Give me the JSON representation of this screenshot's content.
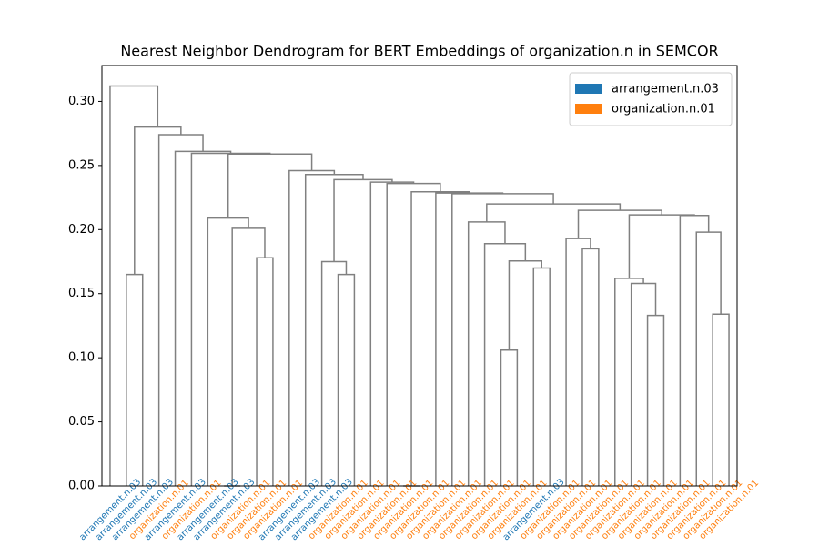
{
  "chart_data": {
    "type": "dendrogram",
    "title": "Nearest Neighbor Dendrogram for BERT Embeddings of organization.n in SEMCOR",
    "series": [
      {
        "name": "arrangement.n.03",
        "color": "#1f77b4"
      },
      {
        "name": "organization.n.01",
        "color": "#ff7f0e"
      }
    ],
    "leaves": [
      "arrangement.n.03",
      "arrangement.n.03",
      "arrangement.n.03",
      "organization.n.01",
      "arrangement.n.03",
      "organization.n.01",
      "arrangement.n.03",
      "arrangement.n.03",
      "organization.n.01",
      "organization.n.01",
      "organization.n.01",
      "arrangement.n.03",
      "arrangement.n.03",
      "arrangement.n.03",
      "organization.n.01",
      "organization.n.01",
      "organization.n.01",
      "organization.n.01",
      "organization.n.01",
      "organization.n.01",
      "organization.n.01",
      "organization.n.01",
      "organization.n.01",
      "organization.n.01",
      "organization.n.01",
      "organization.n.01",
      "arrangement.n.03",
      "organization.n.01",
      "organization.n.01",
      "organization.n.01",
      "organization.n.01",
      "organization.n.01",
      "organization.n.01",
      "organization.n.01",
      "organization.n.01",
      "organization.n.01",
      "organization.n.01",
      "organization.n.01",
      "organization.n.01"
    ],
    "linkage": [
      [
        7,
        8,
        0.0
      ],
      [
        18,
        19,
        0.0
      ],
      [
        24,
        25,
        0.106
      ],
      [
        33,
        34,
        0.133
      ],
      [
        37,
        38,
        0.134
      ],
      [
        1,
        2,
        0.165
      ],
      [
        14,
        15,
        0.165
      ],
      [
        26,
        27,
        0.17
      ],
      [
        13,
        45,
        0.175
      ],
      [
        9,
        10,
        0.178
      ],
      [
        32,
        42,
        0.158
      ],
      [
        31,
        49,
        0.162
      ],
      [
        41,
        46,
        0.1755
      ],
      [
        29,
        30,
        0.185
      ],
      [
        23,
        51,
        0.189
      ],
      [
        28,
        52,
        0.193
      ],
      [
        36,
        43,
        0.198
      ],
      [
        39,
        48,
        0.201
      ],
      [
        22,
        53,
        0.206
      ],
      [
        6,
        56,
        0.209
      ],
      [
        35,
        55,
        0.211
      ],
      [
        50,
        59,
        0.2115
      ],
      [
        54,
        60,
        0.215
      ],
      [
        57,
        61,
        0.22
      ],
      [
        21,
        62,
        0.228
      ],
      [
        20,
        63,
        0.2285
      ],
      [
        40,
        64,
        0.2295
      ],
      [
        17,
        65,
        0.236
      ],
      [
        16,
        66,
        0.237
      ],
      [
        47,
        67,
        0.239
      ],
      [
        12,
        68,
        0.243
      ],
      [
        11,
        69,
        0.246
      ],
      [
        58,
        70,
        0.259
      ],
      [
        5,
        71,
        0.2595
      ],
      [
        4,
        72,
        0.261
      ],
      [
        3,
        73,
        0.274
      ],
      [
        44,
        74,
        0.28
      ],
      [
        0,
        75,
        0.312
      ]
    ],
    "link_color": "#808080",
    "ylim": [
      0,
      0.328
    ],
    "yticks": [
      {
        "value": 0,
        "label": "0.00"
      },
      0.05,
      {
        "value": 0.1,
        "label": "0.10"
      },
      0.15,
      {
        "value": 0.2,
        "label": "0.20"
      },
      0.25,
      {
        "value": 0.3,
        "label": "0.30"
      }
    ],
    "legend": "upper right"
  }
}
